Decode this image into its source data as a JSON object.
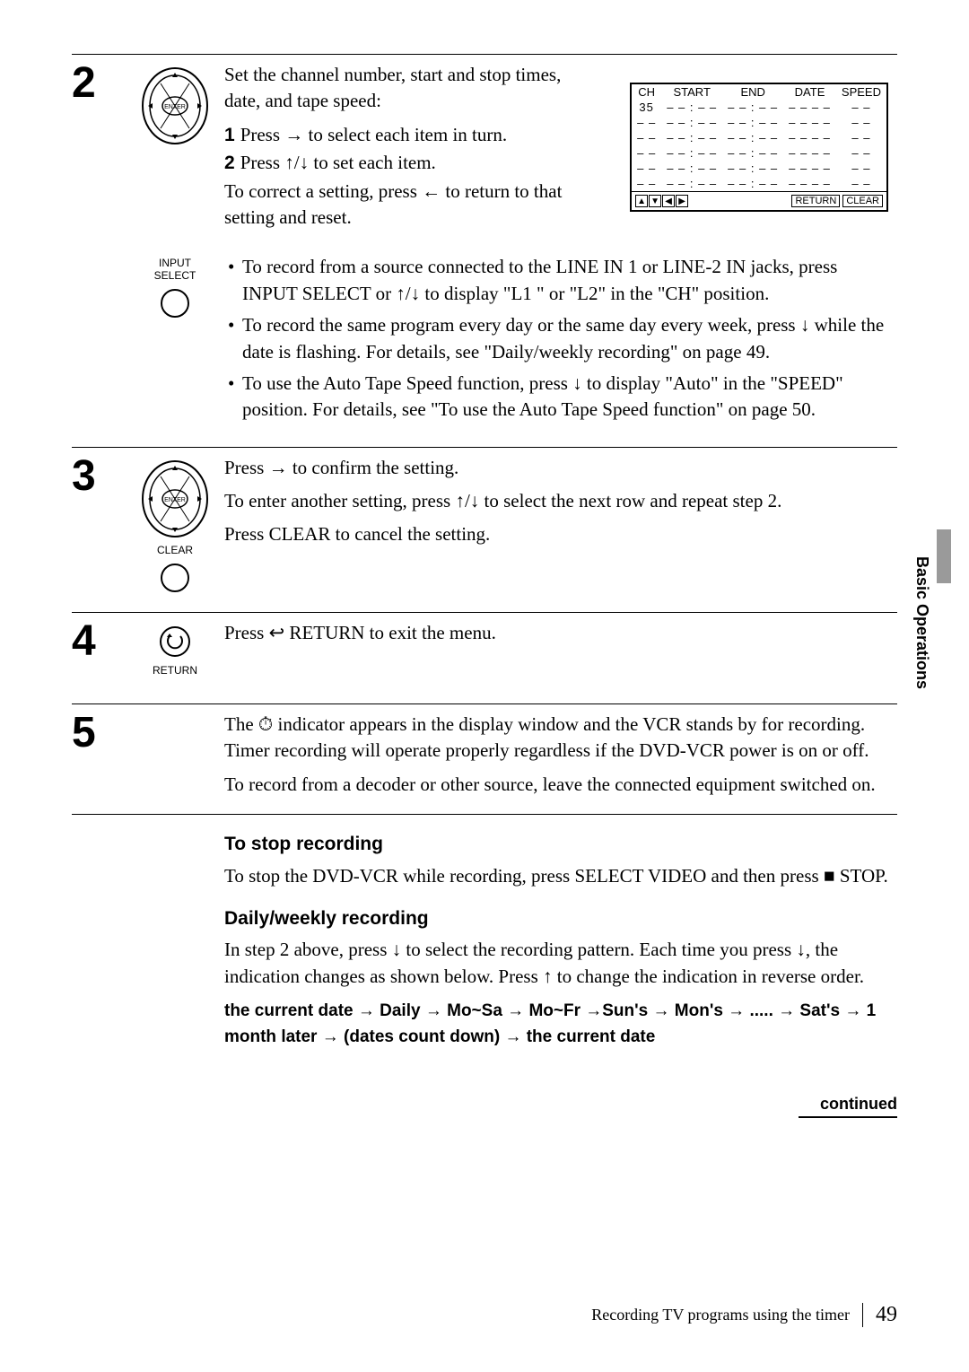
{
  "side_tab": "Basic Operations",
  "table": {
    "headers": [
      "CH",
      "START",
      "END",
      "DATE",
      "SPEED"
    ],
    "rows": [
      [
        "35",
        "– – : – –",
        "– – : – –",
        "– – – –",
        "– –"
      ],
      [
        "– –",
        "– – : – –",
        "– – : – –",
        "– – – –",
        "– –"
      ],
      [
        "– –",
        "– – : – –",
        "– – : – –",
        "– – – –",
        "– –"
      ],
      [
        "– –",
        "– – : – –",
        "– – : – –",
        "– – – –",
        "– –"
      ],
      [
        "– –",
        "– – : – –",
        "– – : – –",
        "– – – –",
        "– –"
      ],
      [
        "– –",
        "– – : – –",
        "– – : – –",
        "– – – –",
        "– –"
      ]
    ],
    "footer_buttons": [
      "RETURN",
      "CLEAR"
    ]
  },
  "step2": {
    "num": "2",
    "intro": "Set the channel number, start and stop times, date, and tape speed:",
    "sub1_n": "1",
    "sub1": "Press → to select each item in turn.",
    "sub2_n": "2",
    "sub2": "Press ↑/↓ to set each item.",
    "correct": "To correct a setting, press ← to return to that setting and reset.",
    "b1": "To record from a source connected to the LINE IN 1 or LINE-2 IN jacks, press INPUT SELECT or ↑/↓ to display \"L1 \" or \"L2\" in the \"CH\" position.",
    "b2": "To record the same program every day or the same day every week, press ↓ while the date is flashing.  For details, see \"Daily/weekly recording\" on page 49.",
    "b3": "To use the Auto Tape Speed function, press ↓ to display \"Auto\" in the \"SPEED\" position.  For details, see \"To use the Auto Tape Speed function\" on page 50.",
    "input_select_label": "INPUT\nSELECT"
  },
  "step3": {
    "num": "3",
    "p1": "Press → to confirm the setting.",
    "p2": "To enter another setting, press ↑/↓ to select the next row and repeat step 2.",
    "p3": "Press CLEAR to cancel the setting.",
    "clear_label": "CLEAR"
  },
  "step4": {
    "num": "4",
    "p1": "Press ↩ RETURN to exit the menu.",
    "return_label": "RETURN"
  },
  "step5": {
    "num": "5",
    "p1": "The ⏱ indicator appears in the display window and the VCR stands by for recording.  Timer recording will operate properly regardless if the DVD-VCR power is on or off.",
    "p2": "To record from a decoder or other source, leave the connected equipment switched on."
  },
  "lower": {
    "h1": "To stop recording",
    "p1": "To stop the DVD-VCR while recording, press SELECT VIDEO and then press ■ STOP.",
    "h2": "Daily/weekly recording",
    "p2": "In step 2 above, press ↓ to select the recording pattern.  Each time you press ↓, the indication changes as shown below.  Press ↑ to change the indication in reverse order.",
    "pattern": "the current date → Daily → Mo~Sa  → Mo~Fr →Sun's → Mon's → .....  → Sat's → 1 month later → (dates count down) → the current date"
  },
  "continued": "continued",
  "footer_text": "Recording TV programs using the timer",
  "page_num": "49"
}
